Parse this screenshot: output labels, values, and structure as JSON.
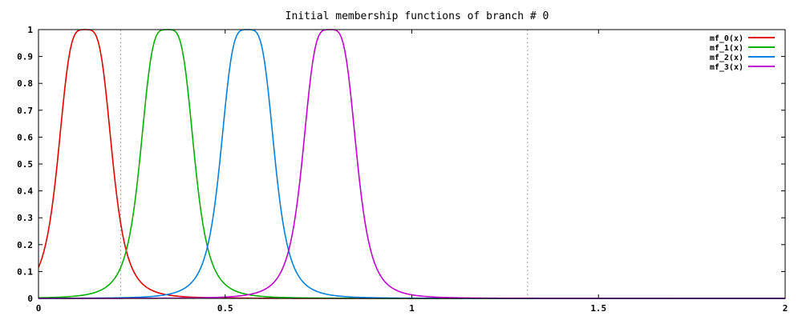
{
  "chart_data": {
    "type": "line",
    "title": "Initial membership functions of branch # 0",
    "xlabel": "",
    "ylabel": "",
    "xlim": [
      0,
      2
    ],
    "ylim": [
      0,
      1
    ],
    "xticks": [
      0,
      0.5,
      1,
      1.5,
      2
    ],
    "xtick_labels": [
      "0",
      "0.5",
      "1",
      "1.5",
      "2"
    ],
    "yticks": [
      0,
      0.1,
      0.2,
      0.3,
      0.4,
      0.5,
      0.6,
      0.7,
      0.8,
      0.9,
      1
    ],
    "ytick_labels": [
      "0",
      "0.1",
      "0.2",
      "0.3",
      "0.4",
      "0.5",
      "0.6",
      "0.7",
      "0.8",
      "0.9",
      "1"
    ],
    "vertical_reference_lines": [
      0.22,
      1.31
    ],
    "legend_position": "top-right",
    "series": [
      {
        "name": "mf_0(x)",
        "color": "#e00000",
        "center": 0.125,
        "width": 0.075,
        "slope": 2
      },
      {
        "name": "mf_1(x)",
        "color": "#00b000",
        "center": 0.345,
        "width": 0.075,
        "slope": 2
      },
      {
        "name": "mf_2(x)",
        "color": "#0080e0",
        "center": 0.56,
        "width": 0.075,
        "slope": 2
      },
      {
        "name": "mf_3(x)",
        "color": "#c000d0",
        "center": 0.78,
        "width": 0.075,
        "slope": 2
      }
    ]
  }
}
